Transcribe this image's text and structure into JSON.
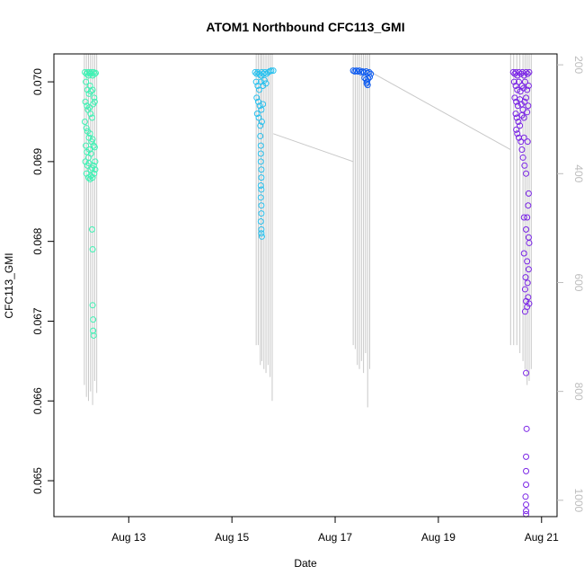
{
  "chart_data": {
    "type": "scatter",
    "title": "ATOM1 Northbound CFC113_GMI",
    "xlabel": "Date",
    "ylabel": "CFC113_GMI",
    "y2label": "",
    "xlim": [
      11.55,
      21.3
    ],
    "ylim": [
      0.06455,
      0.07035
    ],
    "y2lim": [
      1030,
      180
    ],
    "x_ticks": [
      {
        "value": 13,
        "label": "Aug 13"
      },
      {
        "value": 15,
        "label": "Aug 15"
      },
      {
        "value": 17,
        "label": "Aug 17"
      },
      {
        "value": 19,
        "label": "Aug 19"
      },
      {
        "value": 21,
        "label": "Aug 21"
      }
    ],
    "y_ticks": [
      0.065,
      0.066,
      0.067,
      0.068,
      0.069,
      0.07
    ],
    "y2_ticks": [
      200,
      400,
      600,
      800,
      1000
    ],
    "grid": false,
    "line_color": "#c8c8c8",
    "legend": "none",
    "series": [
      {
        "color": "#3ef2b4",
        "points": [
          [
            12.15,
            0.07012
          ],
          [
            12.18,
            0.0701
          ],
          [
            12.2,
            0.07012
          ],
          [
            12.22,
            0.07008
          ],
          [
            12.24,
            0.07012
          ],
          [
            12.26,
            0.0701
          ],
          [
            12.28,
            0.07012
          ],
          [
            12.3,
            0.07008
          ],
          [
            12.32,
            0.07012
          ],
          [
            12.34,
            0.0701
          ],
          [
            12.36,
            0.07011
          ],
          [
            12.17,
            0.07
          ],
          [
            12.2,
            0.0699
          ],
          [
            12.23,
            0.06985
          ],
          [
            12.25,
            0.06995
          ],
          [
            12.27,
            0.06988
          ],
          [
            12.3,
            0.0699
          ],
          [
            12.33,
            0.0698
          ],
          [
            12.16,
            0.06975
          ],
          [
            12.19,
            0.0697
          ],
          [
            12.21,
            0.06965
          ],
          [
            12.24,
            0.06968
          ],
          [
            12.26,
            0.0696
          ],
          [
            12.29,
            0.06955
          ],
          [
            12.31,
            0.06972
          ],
          [
            12.34,
            0.06975
          ],
          [
            12.15,
            0.0695
          ],
          [
            12.18,
            0.06942
          ],
          [
            12.2,
            0.06938
          ],
          [
            12.23,
            0.0693
          ],
          [
            12.25,
            0.06935
          ],
          [
            12.28,
            0.06925
          ],
          [
            12.3,
            0.06928
          ],
          [
            12.17,
            0.0692
          ],
          [
            12.19,
            0.06912
          ],
          [
            12.22,
            0.06905
          ],
          [
            12.24,
            0.06915
          ],
          [
            12.27,
            0.0691
          ],
          [
            12.32,
            0.0692
          ],
          [
            12.34,
            0.06918
          ],
          [
            12.16,
            0.069
          ],
          [
            12.2,
            0.06895
          ],
          [
            12.23,
            0.06898
          ],
          [
            12.26,
            0.0689
          ],
          [
            12.29,
            0.06892
          ],
          [
            12.32,
            0.06895
          ],
          [
            12.35,
            0.069
          ],
          [
            12.18,
            0.06885
          ],
          [
            12.22,
            0.0688
          ],
          [
            12.25,
            0.06878
          ],
          [
            12.27,
            0.06882
          ],
          [
            12.3,
            0.0688
          ],
          [
            12.33,
            0.06885
          ],
          [
            12.35,
            0.0689
          ],
          [
            12.29,
            0.06815
          ],
          [
            12.3,
            0.0679
          ],
          [
            12.3,
            0.0672
          ],
          [
            12.31,
            0.06702
          ],
          [
            12.31,
            0.06688
          ],
          [
            12.32,
            0.06682
          ]
        ]
      },
      {
        "color": "#29c1ee",
        "points": [
          [
            15.45,
            0.07012
          ],
          [
            15.48,
            0.0701
          ],
          [
            15.5,
            0.07012
          ],
          [
            15.53,
            0.0701
          ],
          [
            15.56,
            0.07008
          ],
          [
            15.58,
            0.07012
          ],
          [
            15.61,
            0.0701
          ],
          [
            15.64,
            0.07012
          ],
          [
            15.67,
            0.0701
          ],
          [
            15.7,
            0.07012
          ],
          [
            15.73,
            0.07013
          ],
          [
            15.76,
            0.07014
          ],
          [
            15.8,
            0.07014
          ],
          [
            15.47,
            0.07
          ],
          [
            15.5,
            0.06995
          ],
          [
            15.53,
            0.0699
          ],
          [
            15.56,
            0.07
          ],
          [
            15.6,
            0.06995
          ],
          [
            15.63,
            0.07002
          ],
          [
            15.66,
            0.06998
          ],
          [
            15.48,
            0.0698
          ],
          [
            15.51,
            0.06975
          ],
          [
            15.54,
            0.0697
          ],
          [
            15.57,
            0.06965
          ],
          [
            15.6,
            0.06972
          ],
          [
            15.49,
            0.0696
          ],
          [
            15.52,
            0.06955
          ],
          [
            15.55,
            0.06945
          ],
          [
            15.58,
            0.0695
          ],
          [
            15.55,
            0.06932
          ],
          [
            15.56,
            0.0692
          ],
          [
            15.56,
            0.0691
          ],
          [
            15.56,
            0.069
          ],
          [
            15.57,
            0.0689
          ],
          [
            15.57,
            0.0688
          ],
          [
            15.56,
            0.0687
          ],
          [
            15.57,
            0.06865
          ],
          [
            15.56,
            0.06855
          ],
          [
            15.57,
            0.06845
          ],
          [
            15.57,
            0.06835
          ],
          [
            15.56,
            0.06825
          ],
          [
            15.57,
            0.06815
          ],
          [
            15.57,
            0.0681
          ],
          [
            15.58,
            0.06806
          ]
        ]
      },
      {
        "color": "#0f5cf0",
        "points": [
          [
            17.35,
            0.07014
          ],
          [
            17.38,
            0.07013
          ],
          [
            17.41,
            0.07014
          ],
          [
            17.44,
            0.07013
          ],
          [
            17.47,
            0.07014
          ],
          [
            17.5,
            0.07012
          ],
          [
            17.53,
            0.07013
          ],
          [
            17.56,
            0.07012
          ],
          [
            17.6,
            0.07013
          ],
          [
            17.63,
            0.07011
          ],
          [
            17.66,
            0.07012
          ],
          [
            17.69,
            0.0701
          ],
          [
            17.57,
            0.07005
          ],
          [
            17.6,
            0.07003
          ],
          [
            17.62,
            0.07
          ],
          [
            17.64,
            0.07004
          ],
          [
            17.67,
            0.07006
          ],
          [
            17.61,
            0.06998
          ],
          [
            17.63,
            0.06996
          ]
        ]
      },
      {
        "color": "#7a24e6",
        "points": [
          [
            20.45,
            0.07012
          ],
          [
            20.48,
            0.0701
          ],
          [
            20.5,
            0.07012
          ],
          [
            20.53,
            0.07008
          ],
          [
            20.56,
            0.07012
          ],
          [
            20.6,
            0.0701
          ],
          [
            20.63,
            0.07012
          ],
          [
            20.66,
            0.07008
          ],
          [
            20.7,
            0.07012
          ],
          [
            20.73,
            0.0701
          ],
          [
            20.76,
            0.07012
          ],
          [
            20.47,
            0.07
          ],
          [
            20.5,
            0.06995
          ],
          [
            20.53,
            0.0699
          ],
          [
            20.56,
            0.07
          ],
          [
            20.59,
            0.06988
          ],
          [
            20.62,
            0.06995
          ],
          [
            20.65,
            0.06992
          ],
          [
            20.68,
            0.07
          ],
          [
            20.72,
            0.0699
          ],
          [
            20.75,
            0.06995
          ],
          [
            20.48,
            0.0698
          ],
          [
            20.51,
            0.06975
          ],
          [
            20.54,
            0.0697
          ],
          [
            20.58,
            0.06978
          ],
          [
            20.61,
            0.06972
          ],
          [
            20.64,
            0.06965
          ],
          [
            20.67,
            0.06975
          ],
          [
            20.7,
            0.0698
          ],
          [
            20.74,
            0.0697
          ],
          [
            20.5,
            0.0696
          ],
          [
            20.52,
            0.06955
          ],
          [
            20.55,
            0.0695
          ],
          [
            20.58,
            0.06945
          ],
          [
            20.62,
            0.06958
          ],
          [
            20.66,
            0.06955
          ],
          [
            20.72,
            0.06962
          ],
          [
            20.51,
            0.0694
          ],
          [
            20.53,
            0.06935
          ],
          [
            20.56,
            0.0693
          ],
          [
            20.6,
            0.06925
          ],
          [
            20.66,
            0.0693
          ],
          [
            20.73,
            0.06925
          ],
          [
            20.62,
            0.06915
          ],
          [
            20.64,
            0.06905
          ],
          [
            20.67,
            0.06895
          ],
          [
            20.7,
            0.06885
          ],
          [
            20.75,
            0.0686
          ],
          [
            20.74,
            0.06845
          ],
          [
            20.72,
            0.0683
          ],
          [
            20.66,
            0.0683
          ],
          [
            20.7,
            0.06815
          ],
          [
            20.75,
            0.06805
          ],
          [
            20.76,
            0.06798
          ],
          [
            20.66,
            0.06785
          ],
          [
            20.72,
            0.06775
          ],
          [
            20.75,
            0.06765
          ],
          [
            20.69,
            0.06755
          ],
          [
            20.73,
            0.06748
          ],
          [
            20.68,
            0.0674
          ],
          [
            20.74,
            0.0673
          ],
          [
            20.7,
            0.06725
          ],
          [
            20.76,
            0.06722
          ],
          [
            20.72,
            0.06718
          ],
          [
            20.68,
            0.06712
          ],
          [
            20.7,
            0.06635
          ],
          [
            20.71,
            0.06565
          ],
          [
            20.7,
            0.0653
          ],
          [
            20.7,
            0.06512
          ],
          [
            20.7,
            0.06495
          ],
          [
            20.69,
            0.0648
          ],
          [
            20.7,
            0.0647
          ],
          [
            20.7,
            0.06462
          ],
          [
            20.7,
            0.06458
          ]
        ]
      }
    ],
    "profile_lines": [
      [
        12.14,
        0.0662,
        0.07035
      ],
      [
        12.18,
        0.06605,
        0.07035
      ],
      [
        12.22,
        0.066,
        0.07035
      ],
      [
        12.26,
        0.06612,
        0.07035
      ],
      [
        12.3,
        0.06595,
        0.07035
      ],
      [
        12.34,
        0.06625,
        0.07035
      ],
      [
        12.38,
        0.0661,
        0.07035
      ],
      [
        15.47,
        0.0667,
        0.07035
      ],
      [
        15.51,
        0.0667,
        0.07035
      ],
      [
        15.55,
        0.06645,
        0.07035
      ],
      [
        15.58,
        0.0665,
        0.07035
      ],
      [
        15.62,
        0.0664,
        0.07035
      ],
      [
        15.66,
        0.06635,
        0.07035
      ],
      [
        15.7,
        0.06645,
        0.07035
      ],
      [
        15.74,
        0.0663,
        0.07035
      ],
      [
        15.78,
        0.066,
        0.07035
      ],
      [
        17.35,
        0.0667,
        0.07035
      ],
      [
        17.39,
        0.06665,
        0.07035
      ],
      [
        17.43,
        0.06645,
        0.07035
      ],
      [
        17.47,
        0.0664,
        0.07035
      ],
      [
        17.51,
        0.0665,
        0.07035
      ],
      [
        17.55,
        0.06635,
        0.07035
      ],
      [
        17.59,
        0.0666,
        0.07035
      ],
      [
        17.63,
        0.06592,
        0.07035
      ],
      [
        17.67,
        0.0664,
        0.07035
      ],
      [
        20.4,
        0.0667,
        0.07035
      ],
      [
        20.46,
        0.0667,
        0.07035
      ],
      [
        20.52,
        0.0667,
        0.07035
      ],
      [
        20.58,
        0.0666,
        0.07035
      ],
      [
        20.64,
        0.0665,
        0.07035
      ],
      [
        20.68,
        0.0664,
        0.07035
      ],
      [
        20.72,
        0.0662,
        0.07035
      ],
      [
        20.76,
        0.06625,
        0.07035
      ],
      [
        20.8,
        0.0664,
        0.07035
      ]
    ],
    "connector_lines": [
      [
        [
          15.8,
          0.06935
        ],
        [
          17.35,
          0.069
        ]
      ],
      [
        [
          17.7,
          0.07012
        ],
        [
          20.4,
          0.06915
        ]
      ]
    ]
  }
}
